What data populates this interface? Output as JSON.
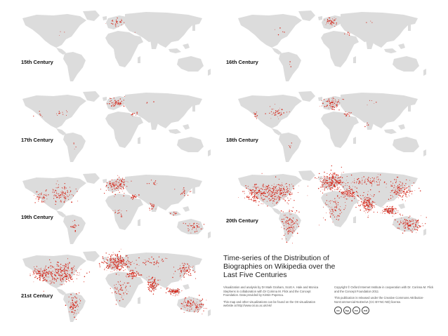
{
  "maps": [
    {
      "id": "c15",
      "label": "15th Century",
      "hubs": [
        [
          0,
          0.1,
          0.22
        ],
        [
          1,
          0.01,
          0.05
        ],
        [
          3,
          0.0,
          0.02
        ],
        [
          8,
          0.005,
          0.03
        ]
      ]
    },
    {
      "id": "c16",
      "label": "16th Century",
      "hubs": [
        [
          0,
          0.15,
          0.28
        ],
        [
          1,
          0.02,
          0.06
        ],
        [
          3,
          0.01,
          0.04
        ],
        [
          8,
          0.03,
          0.08
        ],
        [
          9,
          0.01,
          0.06
        ]
      ]
    },
    {
      "id": "c17",
      "label": "17th Century",
      "hubs": [
        [
          0,
          0.22,
          0.35
        ],
        [
          1,
          0.04,
          0.12
        ],
        [
          2,
          0.02,
          0.06
        ],
        [
          3,
          0.015,
          0.05
        ],
        [
          8,
          0.04,
          0.1
        ],
        [
          9,
          0.01,
          0.07
        ]
      ]
    },
    {
      "id": "c18",
      "label": "18th Century",
      "hubs": [
        [
          0,
          0.3,
          0.45
        ],
        [
          1,
          0.18,
          0.4
        ],
        [
          2,
          0.04,
          0.1
        ],
        [
          3,
          0.02,
          0.07
        ],
        [
          4,
          0.02,
          0.06
        ],
        [
          8,
          0.05,
          0.12
        ],
        [
          9,
          0.02,
          0.08
        ]
      ]
    },
    {
      "id": "c19",
      "label": "19th Century",
      "hubs": [
        [
          0,
          0.5,
          0.65
        ],
        [
          1,
          0.4,
          0.8
        ],
        [
          2,
          0.15,
          0.35
        ],
        [
          3,
          0.08,
          0.18
        ],
        [
          4,
          0.08,
          0.2
        ],
        [
          5,
          0.08,
          0.2
        ],
        [
          6,
          0.06,
          0.12
        ],
        [
          7,
          0.15,
          0.3
        ],
        [
          8,
          0.08,
          0.2
        ],
        [
          9,
          0.05,
          0.12
        ],
        [
          10,
          0.03,
          0.08
        ]
      ]
    },
    {
      "id": "c20",
      "label": "20th Century",
      "hubs": [
        [
          0,
          0.95,
          1.0
        ],
        [
          1,
          0.95,
          1.0
        ],
        [
          2,
          0.55,
          0.85
        ],
        [
          3,
          0.45,
          0.8
        ],
        [
          4,
          0.6,
          0.85
        ],
        [
          5,
          0.55,
          0.85
        ],
        [
          6,
          0.3,
          0.6
        ],
        [
          7,
          0.55,
          0.85
        ],
        [
          8,
          0.45,
          0.75
        ],
        [
          9,
          0.3,
          0.55
        ],
        [
          10,
          0.4,
          0.7
        ]
      ]
    },
    {
      "id": "c21",
      "label": "21st Century",
      "hubs": [
        [
          0,
          0.95,
          1.0
        ],
        [
          1,
          0.95,
          1.0
        ],
        [
          2,
          0.45,
          0.7
        ],
        [
          3,
          0.3,
          0.55
        ],
        [
          4,
          0.4,
          0.65
        ],
        [
          5,
          0.3,
          0.55
        ],
        [
          6,
          0.2,
          0.4
        ],
        [
          7,
          0.45,
          0.75
        ],
        [
          8,
          0.25,
          0.5
        ],
        [
          9,
          0.15,
          0.35
        ],
        [
          10,
          0.3,
          0.55
        ]
      ]
    }
  ],
  "info": {
    "title": "Time-series of the Distribution of Biographies on Wikipedia over the Last Five Centuries",
    "credit": "Visualization and analysis by Dr Mark Graham, Scott A. Hale and Monica Stephens in collaboration with Dr Corinna M. Flick and the Concept Foundation. Data provided by Kirstin Popescu.",
    "more": "This map and other visualizations can be found on the OII visualization website at http://www.oii.ox.ac.uk/vis/",
    "copyright": "Copyright © Oxford Internet Institute in cooperation with Dr. Corinna M. Flick and the Concept Foundation 2011",
    "license": "This publication is released under the Creative Commons Attribution-NonCommercial-NoDerivs (CC BY-NC-ND) license.",
    "cc_badges": [
      "cc",
      "by",
      "nc",
      "nd"
    ]
  },
  "colors": {
    "land": "#dcdcdc",
    "dots": "#d42518"
  }
}
